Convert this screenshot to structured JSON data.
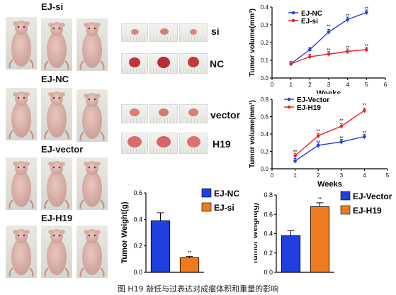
{
  "groups": {
    "ej_si": "EJ-si",
    "ej_nc": "EJ-NC",
    "ej_vector": "EJ-vector",
    "ej_h19": "EJ-H19"
  },
  "tumor_labels": {
    "si": "si",
    "nc": "NC",
    "vector": "vector",
    "h19": "H19"
  },
  "caption": "图 H19 敲低与过表达对成瘤体积和重量的影响",
  "colors": {
    "blue": "#1f3fe0",
    "red": "#e8202a",
    "orange": "#f07a1e"
  },
  "chart_data": [
    {
      "type": "line",
      "ylabel": "Tumor volume(mm³)",
      "xlabel": "Weeks",
      "xlim": [
        0,
        6
      ],
      "ylim": [
        0,
        0.4
      ],
      "xticks": [
        "0",
        "1",
        "2",
        "3",
        "4",
        "5",
        "6"
      ],
      "yticks": [
        "0.0",
        "0.1",
        "0.2",
        "0.3",
        "0.4"
      ],
      "series": [
        {
          "name": "EJ-NC",
          "color": "#1f3fe0",
          "x": [
            1,
            2,
            3,
            4,
            5
          ],
          "values": [
            0.08,
            0.16,
            0.26,
            0.33,
            0.37
          ]
        },
        {
          "name": "EJ-si",
          "color": "#e8202a",
          "x": [
            1,
            2,
            3,
            4,
            5
          ],
          "values": [
            0.08,
            0.12,
            0.135,
            0.15,
            0.16
          ]
        }
      ],
      "annotations": [
        {
          "x": 3,
          "y": 0.295,
          "text": "**"
        },
        {
          "x": 4,
          "y": 0.355,
          "text": "**"
        },
        {
          "x": 5,
          "y": 0.395,
          "text": "**"
        },
        {
          "x": 3,
          "y": 0.16,
          "text": "**"
        },
        {
          "x": 4,
          "y": 0.175,
          "text": "**"
        },
        {
          "x": 5,
          "y": 0.185,
          "text": "**"
        }
      ],
      "legend": "top-left"
    },
    {
      "type": "line",
      "ylabel": "Tumor volume(mm³)",
      "xlabel": "Weeks",
      "xlim": [
        0,
        5
      ],
      "ylim": [
        0,
        0.8
      ],
      "xticks": [
        "0",
        "1",
        "2",
        "3",
        "4",
        "5"
      ],
      "yticks": [
        "0.0",
        "0.2",
        "0.4",
        "0.6",
        "0.8"
      ],
      "series": [
        {
          "name": "EJ-Vector",
          "color": "#1f3fe0",
          "x": [
            1,
            2,
            3,
            4
          ],
          "values": [
            0.09,
            0.27,
            0.31,
            0.37
          ]
        },
        {
          "name": "EJ-H19",
          "color": "#e8202a",
          "x": [
            1,
            2,
            3,
            4
          ],
          "values": [
            0.15,
            0.38,
            0.49,
            0.67
          ]
        }
      ],
      "annotations": [
        {
          "x": 1,
          "y": 0.2,
          "text": "**"
        },
        {
          "x": 2,
          "y": 0.44,
          "text": "**"
        },
        {
          "x": 3,
          "y": 0.56,
          "text": "**"
        },
        {
          "x": 4,
          "y": 0.74,
          "text": "**"
        },
        {
          "x": 2,
          "y": 0.31,
          "text": "**"
        },
        {
          "x": 3,
          "y": 0.36,
          "text": "**"
        },
        {
          "x": 4,
          "y": 0.42,
          "text": "**"
        }
      ],
      "legend": "top-left"
    },
    {
      "type": "bar",
      "ylabel": "Tumor Weight(g)",
      "xlabel": "",
      "ylim": [
        0,
        0.6
      ],
      "yticks": [
        "0.0",
        "0.2",
        "0.4",
        "0.6"
      ],
      "categories": [
        "EJ-NC",
        "EJ-si"
      ],
      "values": [
        0.39,
        0.11
      ],
      "errors": [
        0.06,
        0.01
      ],
      "colors": [
        "#1f3fe0",
        "#f07a1e"
      ],
      "annotations": [
        {
          "index": 1,
          "text": "**"
        }
      ],
      "legend": "right"
    },
    {
      "type": "bar",
      "ylabel": "Tumor Weight(g)",
      "xlabel": "",
      "ylim": [
        0,
        0.8
      ],
      "yticks": [
        "0.0",
        "0.2",
        "0.4",
        "0.6",
        "0.8"
      ],
      "categories": [
        "EJ-Vector",
        "EJ-H19"
      ],
      "values": [
        0.38,
        0.68
      ],
      "errors": [
        0.05,
        0.04
      ],
      "colors": [
        "#1f3fe0",
        "#f07a1e"
      ],
      "annotations": [
        {
          "index": 1,
          "text": "**"
        }
      ],
      "legend": "right"
    }
  ]
}
